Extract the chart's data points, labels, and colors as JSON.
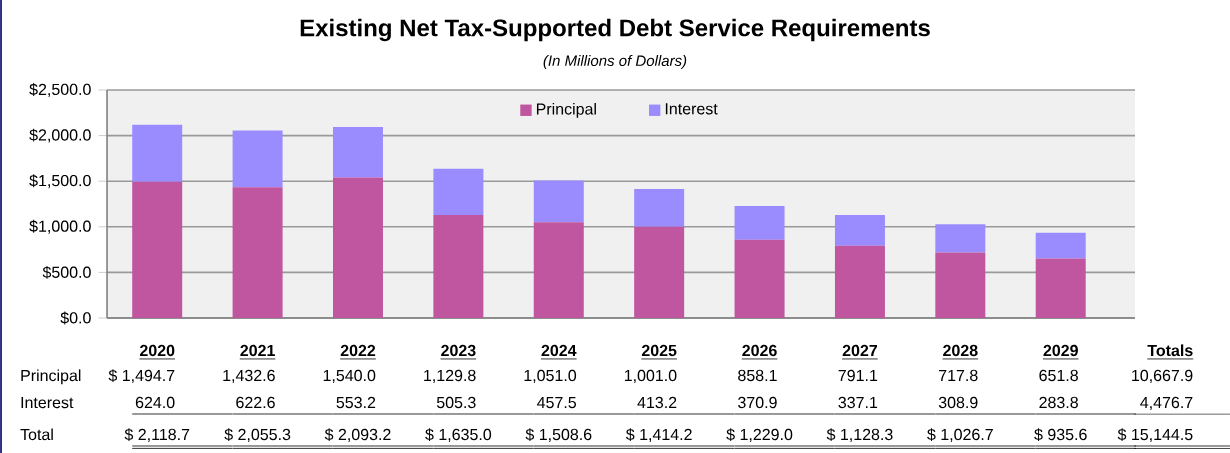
{
  "chart_data": {
    "type": "bar",
    "title": "Existing Net Tax-Supported Debt Service Requirements",
    "subtitle": "(In Millions of Dollars)",
    "categories": [
      "2020",
      "2021",
      "2022",
      "2023",
      "2024",
      "2025",
      "2026",
      "2027",
      "2028",
      "2029"
    ],
    "stacked": true,
    "series": [
      {
        "name": "Principal",
        "color": "#c055a0",
        "values": [
          1494.7,
          1432.6,
          1540.0,
          1129.8,
          1051.0,
          1001.0,
          858.1,
          791.1,
          717.8,
          651.8
        ],
        "value_labels": [
          "$ 1,494.7",
          "1,432.6",
          "1,540.0",
          "1,129.8",
          "1,051.0",
          "1,001.0",
          "858.1",
          "791.1",
          "717.8",
          "651.8"
        ]
      },
      {
        "name": "Interest",
        "color": "#9a8cff",
        "values": [
          624.0,
          622.6,
          553.2,
          505.3,
          457.5,
          413.2,
          370.9,
          337.1,
          308.9,
          283.8
        ],
        "value_labels": [
          "624.0",
          "622.6",
          "553.2",
          "505.3",
          "457.5",
          "413.2",
          "370.9",
          "337.1",
          "308.9",
          "283.8"
        ]
      }
    ],
    "annotations": [
      "Total",
      "$ 2,118.7",
      "$ 2,055.3",
      "$ 2,093.2",
      "$ 1,635.0",
      "$ 1,508.6",
      "$ 1,414.2",
      "$ 1,229.0",
      "$ 1,128.3",
      "$ 1,026.7",
      "$ 935.6",
      "Totals",
      "10,667.9",
      "4,476.7",
      "$ 15,144.5"
    ],
    "ylim": [
      0,
      2500
    ],
    "yticks": [
      {
        "value": 0,
        "label": "$0.0"
      },
      {
        "value": 500,
        "label": "$500.0"
      },
      {
        "value": 1000,
        "label": "$1,000.0"
      },
      {
        "value": 1500,
        "label": "$1,500.0"
      },
      {
        "value": 2000,
        "label": "$2,000.0"
      },
      {
        "value": 2500,
        "label": "$2,500.0"
      }
    ],
    "grid": "y",
    "legend": "top"
  }
}
